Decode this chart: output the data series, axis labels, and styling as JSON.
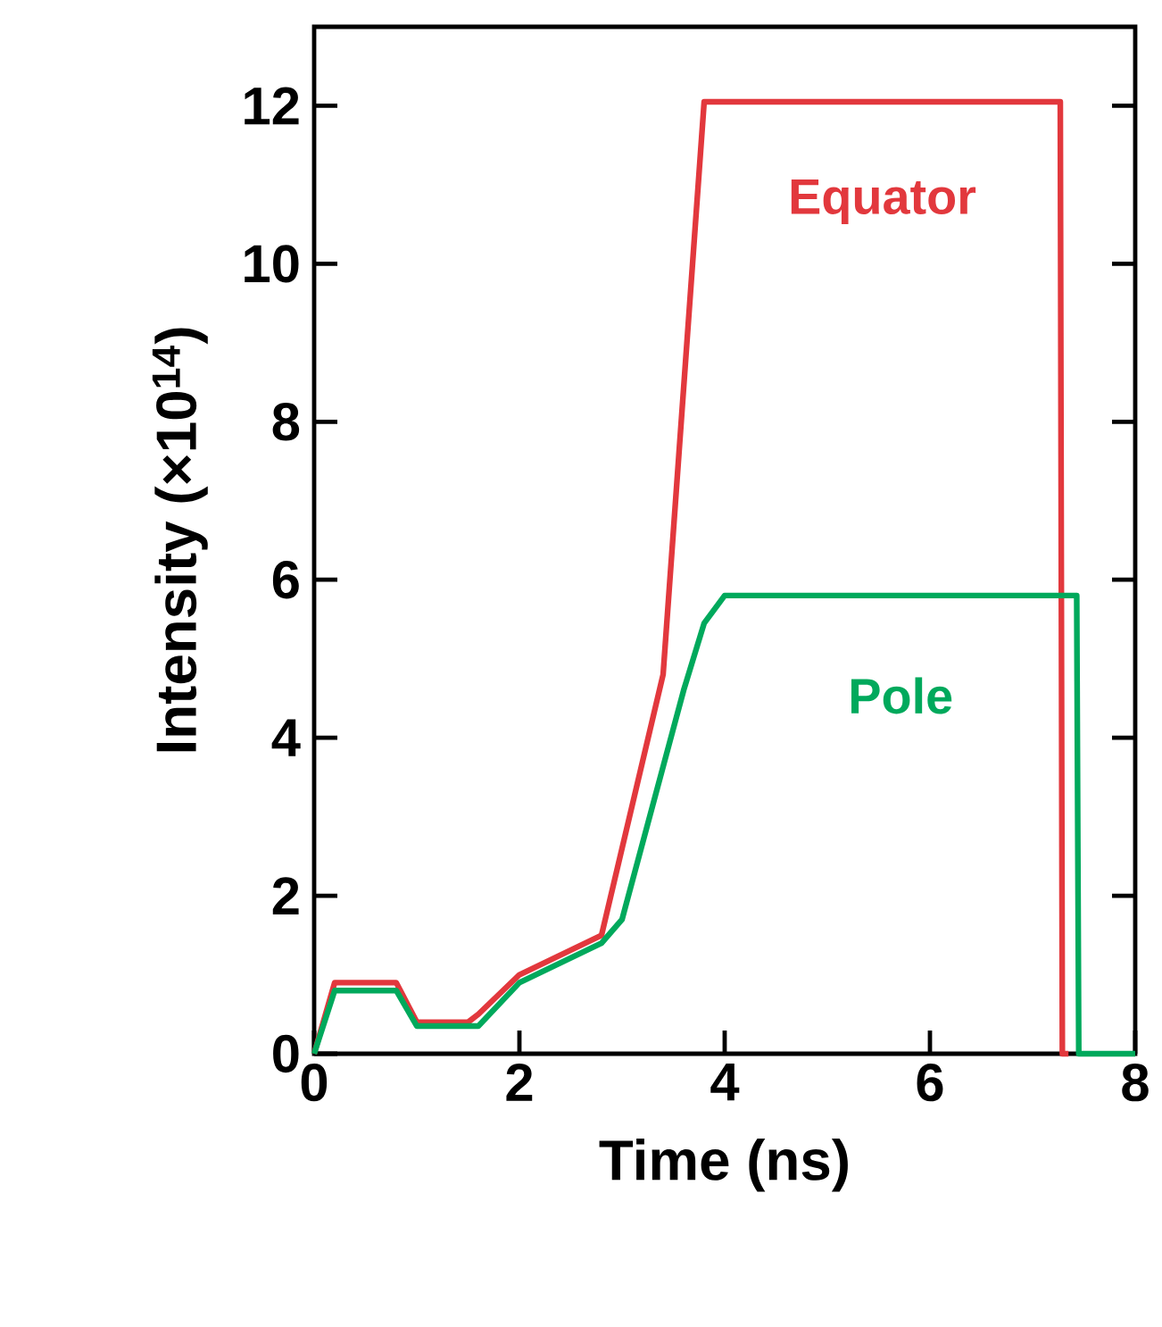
{
  "chart_data": {
    "type": "line",
    "xlabel": "Time (ns)",
    "ylabel": "Intensity (×10$^{14}$)",
    "xlim": [
      0,
      8
    ],
    "ylim": [
      0,
      13
    ],
    "xticks": [
      0,
      2,
      4,
      6,
      8
    ],
    "yticks": [
      0,
      2,
      4,
      6,
      8,
      10,
      12
    ],
    "series": [
      {
        "name": "Equator",
        "color": "#e2383d",
        "x": [
          0,
          0.2,
          0.8,
          1.0,
          1.5,
          1.6,
          2.0,
          2.8,
          3.4,
          3.8,
          7.27,
          7.29,
          7.35
        ],
        "values": [
          0,
          0.9,
          0.9,
          0.4,
          0.4,
          0.5,
          1.0,
          1.5,
          4.8,
          12.05,
          12.05,
          0,
          0
        ]
      },
      {
        "name": "Pole",
        "color": "#00a95c",
        "x": [
          0,
          0.2,
          0.8,
          1.0,
          1.6,
          2.0,
          2.8,
          3.0,
          3.6,
          3.8,
          4.0,
          7.43,
          7.45,
          8.0
        ],
        "values": [
          0,
          0.8,
          0.8,
          0.35,
          0.35,
          0.9,
          1.4,
          1.7,
          4.6,
          5.45,
          5.8,
          5.8,
          0,
          0
        ]
      }
    ]
  }
}
